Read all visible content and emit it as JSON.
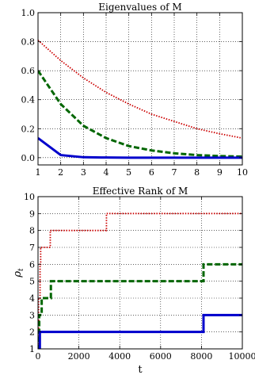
{
  "chart_data": [
    {
      "type": "line",
      "title": "Eigenvalues of M",
      "xlabel": "",
      "ylabel": "",
      "xlim": [
        1,
        10
      ],
      "ylim": [
        -0.05,
        1.0
      ],
      "xticks": [
        1,
        2,
        3,
        4,
        5,
        6,
        7,
        8,
        9,
        10
      ],
      "yticks": [
        0.0,
        0.2,
        0.4,
        0.6,
        0.8,
        1.0
      ],
      "grid": true,
      "x": [
        1,
        2,
        3,
        4,
        5,
        6,
        7,
        8,
        9,
        10
      ],
      "series": [
        {
          "color": "#cc0000",
          "style": "dotted",
          "values": [
            0.81,
            0.67,
            0.55,
            0.45,
            0.37,
            0.3,
            0.25,
            0.2,
            0.165,
            0.135
          ]
        },
        {
          "color": "#006600",
          "style": "dashed",
          "values": [
            0.6,
            0.37,
            0.22,
            0.135,
            0.08,
            0.05,
            0.03,
            0.018,
            0.011,
            0.007
          ]
        },
        {
          "color": "#0000cc",
          "style": "solid",
          "values": [
            0.135,
            0.018,
            0.003,
            0.001,
            0.0,
            0.0,
            0.0,
            0.0,
            0.0,
            0.0
          ]
        }
      ]
    },
    {
      "type": "line",
      "title": "Effective Rank of M",
      "xlabel": "t",
      "ylabel": "ρ_t",
      "xlim": [
        0,
        10000
      ],
      "ylim": [
        1,
        10
      ],
      "xticks": [
        0,
        2000,
        4000,
        6000,
        8000,
        10000
      ],
      "yticks": [
        1,
        2,
        3,
        4,
        5,
        6,
        7,
        8,
        9,
        10
      ],
      "grid": true,
      "series": [
        {
          "color": "#cc0000",
          "style": "dotted",
          "step": true,
          "x": [
            0,
            30,
            30,
            100,
            100,
            130,
            130,
            230,
            230,
            600,
            600,
            3350,
            3350,
            10000
          ],
          "values": [
            1,
            1,
            4,
            4,
            6,
            6,
            7,
            7,
            7,
            7,
            8,
            8,
            9,
            9
          ]
        },
        {
          "color": "#006600",
          "style": "dashed",
          "step": true,
          "x": [
            0,
            60,
            60,
            180,
            180,
            630,
            630,
            8100,
            8100,
            10000
          ],
          "values": [
            1,
            1,
            3,
            3,
            4,
            4,
            5,
            5,
            6,
            6
          ]
        },
        {
          "color": "#0000cc",
          "style": "solid",
          "step": true,
          "x": [
            0,
            90,
            90,
            8100,
            8100,
            10000
          ],
          "values": [
            1,
            1,
            2,
            2,
            3,
            3
          ]
        }
      ]
    }
  ]
}
